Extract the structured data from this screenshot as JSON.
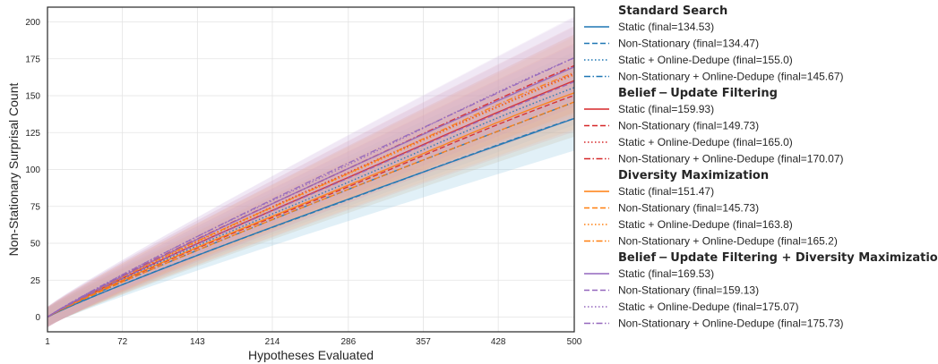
{
  "chart_data": {
    "type": "line",
    "title": "",
    "xlabel": "Hypotheses Evaluated",
    "ylabel": "Non-Stationary Surprisal Count",
    "xlim": [
      1,
      500
    ],
    "ylim": [
      -10,
      210
    ],
    "xticks": [
      1,
      72,
      143,
      214,
      286,
      357,
      428,
      500
    ],
    "yticks": [
      0,
      25,
      50,
      75,
      100,
      125,
      150,
      175,
      200
    ],
    "grid": true,
    "legend_position": "outside-right",
    "groups": [
      {
        "title": "Standard Search",
        "color": "#1f77b4",
        "band_color": "#8fc3e6",
        "series": [
          {
            "name": "Static  (final=134.53)",
            "style": "solid",
            "final": 134.53
          },
          {
            "name": "Non-Stationary (final=134.47)",
            "style": "dashed",
            "final": 134.47
          },
          {
            "name": "Static + Online-Dedupe (final=155.0)",
            "style": "dotted",
            "final": 155.0
          },
          {
            "name": "Non-Stationary + Online-Dedupe (final=145.67)",
            "style": "dashdot",
            "final": 145.67
          }
        ]
      },
      {
        "title": "Belief − Update Filtering",
        "color": "#d62728",
        "band_color": "#e8898a",
        "series": [
          {
            "name": "Static  (final=159.93)",
            "style": "solid",
            "final": 159.93
          },
          {
            "name": "Non-Stationary (final=149.73)",
            "style": "dashed",
            "final": 149.73
          },
          {
            "name": "Static + Online-Dedupe (final=165.0)",
            "style": "dotted",
            "final": 165.0
          },
          {
            "name": "Non-Stationary + Online-Dedupe (final=170.07)",
            "style": "dashdot",
            "final": 170.07
          }
        ]
      },
      {
        "title": "Diversity Maximization",
        "color": "#ff7f0e",
        "band_color": "#f7b57a",
        "series": [
          {
            "name": "Static  (final=151.47)",
            "style": "solid",
            "final": 151.47
          },
          {
            "name": "Non-Stationary (final=145.73)",
            "style": "dashed",
            "final": 145.73
          },
          {
            "name": "Static + Online-Dedupe (final=163.8)",
            "style": "dotted",
            "final": 163.8
          },
          {
            "name": "Non-Stationary + Online-Dedupe (final=165.2)",
            "style": "dashdot",
            "final": 165.2
          }
        ]
      },
      {
        "title": "Belief − Update Filtering + Diversity Maximization",
        "color": "#9467bd",
        "band_color": "#c3a9dd",
        "series": [
          {
            "name": "Static  (final=169.53)",
            "style": "solid",
            "final": 169.53
          },
          {
            "name": "Non-Stationary (final=159.13)",
            "style": "dashed",
            "final": 159.13
          },
          {
            "name": "Static + Online-Dedupe (final=175.07)",
            "style": "dotted",
            "final": 175.07
          },
          {
            "name": "Non-Stationary + Online-Dedupe (final=175.73)",
            "style": "dashdot",
            "final": 175.73
          }
        ]
      }
    ]
  }
}
